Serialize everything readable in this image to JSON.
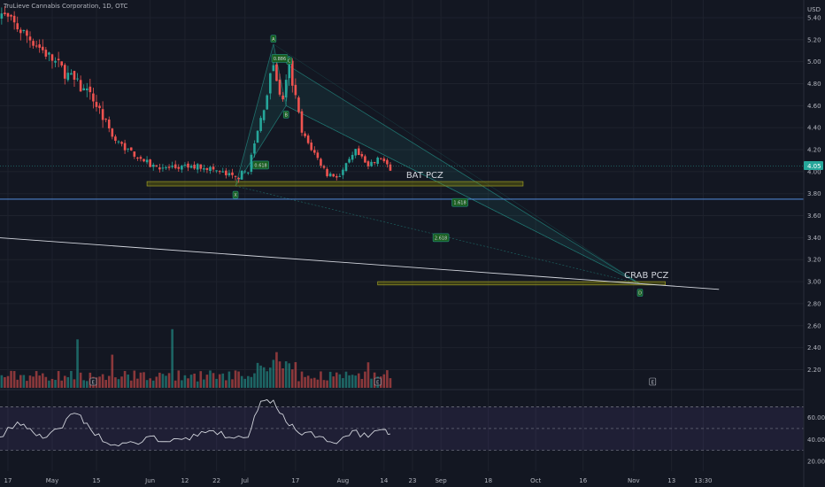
{
  "chart_data": {
    "type": "candlestick",
    "title": "TruLieve Cannabis Corporation, 1D, OTC",
    "currency_label": "USD",
    "last_price_label": "4.05",
    "price_axis": {
      "ylim": [
        1.96,
        5.5
      ],
      "ticks": [
        "5.40",
        "5.20",
        "5.00",
        "4.80",
        "4.60",
        "4.40",
        "4.20",
        "4.00",
        "3.80",
        "3.60",
        "3.40",
        "3.20",
        "3.00",
        "2.80",
        "2.60",
        "2.40",
        "2.20"
      ]
    },
    "rsi_axis": {
      "ylim": [
        15,
        80
      ],
      "ticks": [
        "60.00",
        "40.00",
        "20.00"
      ],
      "band": [
        30,
        70
      ]
    },
    "x_axis": {
      "ticks": [
        {
          "label": "17",
          "day": 0
        },
        {
          "label": "May",
          "day": 14
        },
        {
          "label": "15",
          "day": 28
        },
        {
          "label": "Jun",
          "day": 45
        },
        {
          "label": "12",
          "day": 56
        },
        {
          "label": "22",
          "day": 66
        },
        {
          "label": "Jul",
          "day": 75
        },
        {
          "label": "17",
          "day": 91
        },
        {
          "label": "Aug",
          "day": 106
        },
        {
          "label": "14",
          "day": 119
        },
        {
          "label": "23",
          "day": 128
        },
        {
          "label": "Sep",
          "day": 137
        },
        {
          "label": "18",
          "day": 152
        },
        {
          "label": "Oct",
          "day": 167
        },
        {
          "label": "16",
          "day": 182
        },
        {
          "label": "Nov",
          "day": 198
        },
        {
          "label": "13",
          "day": 210
        },
        {
          "label": "13:30",
          "day": 220
        }
      ]
    },
    "key_prices": [
      {
        "day": -3,
        "price": 5.46
      },
      {
        "day": 9,
        "price": 5.16
      },
      {
        "day": 14,
        "price": 5.02
      },
      {
        "day": 28,
        "price": 4.62
      },
      {
        "day": 34,
        "price": 4.28
      },
      {
        "day": 45,
        "price": 4.06
      },
      {
        "day": 51,
        "price": 4.03
      },
      {
        "day": 62,
        "price": 4.05
      },
      {
        "day": 72,
        "price": 3.94
      },
      {
        "day": 76,
        "price": 4.02
      },
      {
        "day": 80,
        "price": 4.48
      },
      {
        "day": 84,
        "price": 4.98
      },
      {
        "day": 87,
        "price": 4.62
      },
      {
        "day": 89,
        "price": 4.96
      },
      {
        "day": 93,
        "price": 4.35
      },
      {
        "day": 101,
        "price": 3.98
      },
      {
        "day": 105,
        "price": 3.96
      },
      {
        "day": 110,
        "price": 4.18
      },
      {
        "day": 114,
        "price": 4.04
      },
      {
        "day": 118,
        "price": 4.13
      },
      {
        "day": 121,
        "price": 4.0
      }
    ],
    "volume_spikes": [
      {
        "day": 22,
        "value": 1.9
      },
      {
        "day": 33,
        "value": 1.3
      },
      {
        "day": 52,
        "value": 2.3
      },
      {
        "day": 85,
        "value": 1.4
      },
      {
        "day": 114,
        "value": 1.0
      }
    ],
    "rsi": [
      {
        "day": -3,
        "value": 42
      },
      {
        "day": 3,
        "value": 56
      },
      {
        "day": 7,
        "value": 50
      },
      {
        "day": 11,
        "value": 41
      },
      {
        "day": 16,
        "value": 50
      },
      {
        "day": 21,
        "value": 64
      },
      {
        "day": 25,
        "value": 55
      },
      {
        "day": 30,
        "value": 38
      },
      {
        "day": 35,
        "value": 34
      },
      {
        "day": 40,
        "value": 37
      },
      {
        "day": 45,
        "value": 43
      },
      {
        "day": 50,
        "value": 38
      },
      {
        "day": 55,
        "value": 40
      },
      {
        "day": 60,
        "value": 43
      },
      {
        "day": 65,
        "value": 48
      },
      {
        "day": 70,
        "value": 42
      },
      {
        "day": 76,
        "value": 42
      },
      {
        "day": 80,
        "value": 75
      },
      {
        "day": 84,
        "value": 76
      },
      {
        "day": 88,
        "value": 56
      },
      {
        "day": 92,
        "value": 46
      },
      {
        "day": 96,
        "value": 47
      },
      {
        "day": 101,
        "value": 38
      },
      {
        "day": 105,
        "value": 39
      },
      {
        "day": 109,
        "value": 48
      },
      {
        "day": 114,
        "value": 42
      },
      {
        "day": 118,
        "value": 49
      },
      {
        "day": 121,
        "value": 45
      }
    ],
    "annotations": {
      "bat_pcz": {
        "label": "BAT PCZ",
        "price_low": 3.87,
        "price_high": 3.91,
        "day_start": 44,
        "day_end": 163
      },
      "crab_pcz": {
        "label": "CRAB PCZ",
        "price_low": 2.97,
        "price_high": 3.0,
        "day_start": 117,
        "day_end": 208
      },
      "horizontal_line": {
        "price": 3.75
      },
      "current_price_line": {
        "price": 4.05
      },
      "trend_line": {
        "start": {
          "day": -3,
          "price": 3.4
        },
        "end": {
          "day": 225,
          "price": 2.93
        }
      },
      "harmonic_points": [
        {
          "label": "X",
          "day": 72,
          "price": 3.87
        },
        {
          "label": "A",
          "day": 84,
          "price": 5.16
        },
        {
          "label": "B",
          "day": 88,
          "price": 4.6
        },
        {
          "label": "C",
          "day": 89,
          "price": 4.96
        },
        {
          "label": "D",
          "day": 200,
          "price": 2.98
        }
      ],
      "ratio_labels": [
        {
          "label": "0.886",
          "day": 86,
          "price": 5.03
        },
        {
          "label": "0.618",
          "day": 80,
          "price": 4.06
        },
        {
          "label": "1.618",
          "day": 143,
          "price": 3.72
        },
        {
          "label": "2.618",
          "day": 137,
          "price": 3.4
        }
      ],
      "earnings_markers": [
        {
          "label": "E",
          "day": 27
        },
        {
          "label": "E",
          "day": 117
        },
        {
          "label": "E",
          "day": 204
        }
      ]
    }
  }
}
